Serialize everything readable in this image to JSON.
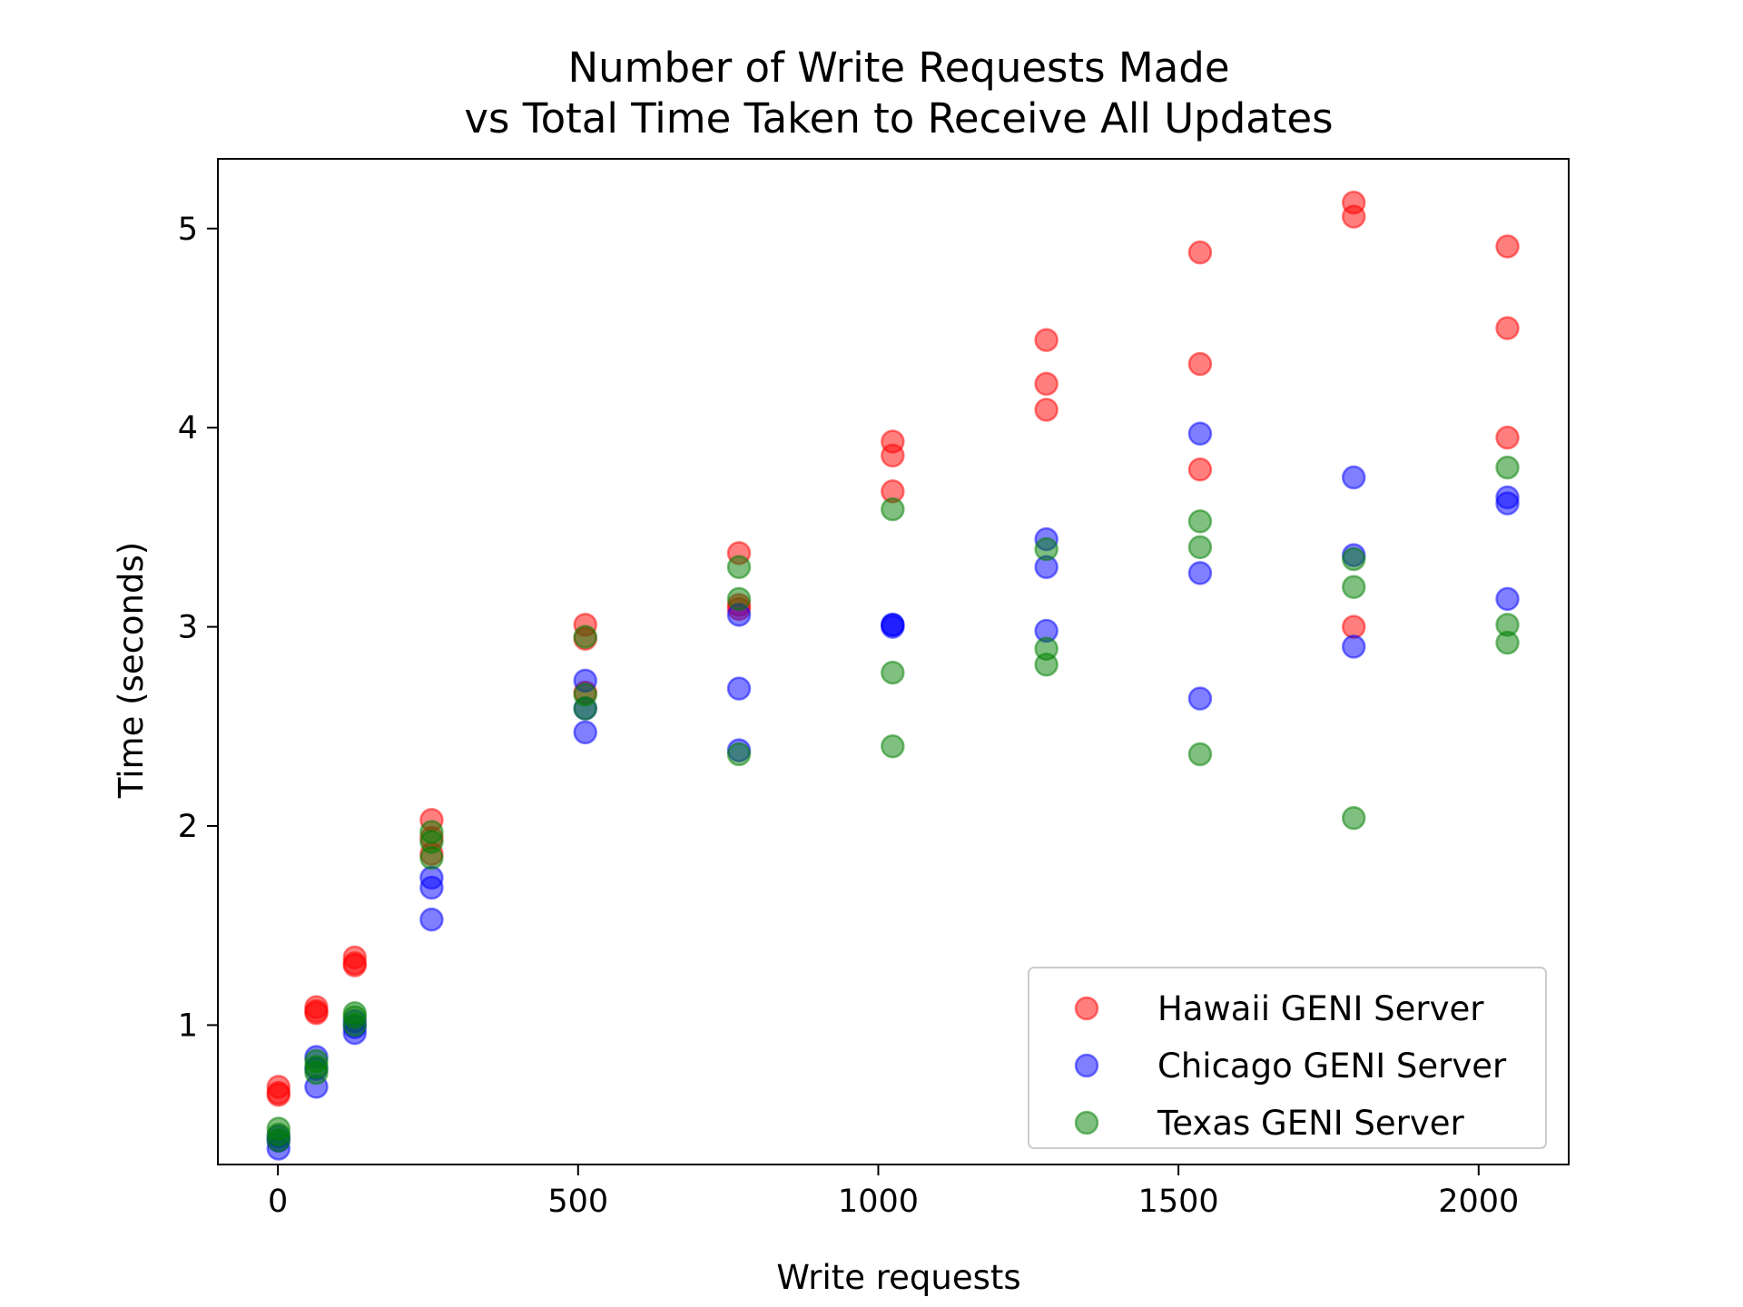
{
  "chart_data": {
    "type": "scatter",
    "title_line1": "Number of Write Requests Made",
    "title_line2": "vs Total Time Taken to Receive All Updates",
    "xlabel": "Write requests",
    "ylabel": "Time (seconds)",
    "xlim": [
      -100,
      2150
    ],
    "ylim": [
      0.3,
      5.35
    ],
    "xticks": [
      0,
      500,
      1000,
      1500,
      2000
    ],
    "yticks": [
      1,
      2,
      3,
      4,
      5
    ],
    "grid": false,
    "legend_position": "lower-right",
    "series": [
      {
        "name": "Hawaii GENI Server",
        "color": "#ff0000",
        "points": [
          [
            1,
            0.69
          ],
          [
            1,
            0.66
          ],
          [
            1,
            0.65
          ],
          [
            64,
            1.09
          ],
          [
            64,
            1.07
          ],
          [
            64,
            1.06
          ],
          [
            128,
            1.34
          ],
          [
            128,
            1.31
          ],
          [
            128,
            1.3
          ],
          [
            256,
            2.03
          ],
          [
            256,
            1.94
          ],
          [
            256,
            1.86
          ],
          [
            512,
            3.01
          ],
          [
            512,
            2.94
          ],
          [
            512,
            2.67
          ],
          [
            768,
            3.37
          ],
          [
            768,
            3.11
          ],
          [
            768,
            3.09
          ],
          [
            1024,
            3.93
          ],
          [
            1024,
            3.86
          ],
          [
            1024,
            3.68
          ],
          [
            1280,
            4.44
          ],
          [
            1280,
            4.22
          ],
          [
            1280,
            4.09
          ],
          [
            1536,
            4.88
          ],
          [
            1536,
            4.32
          ],
          [
            1536,
            3.79
          ],
          [
            1792,
            5.13
          ],
          [
            1792,
            5.06
          ],
          [
            1792,
            3.0
          ],
          [
            2048,
            4.91
          ],
          [
            2048,
            4.5
          ],
          [
            2048,
            3.95
          ]
        ]
      },
      {
        "name": "Chicago GENI Server",
        "color": "#0000ff",
        "points": [
          [
            1,
            0.38
          ],
          [
            1,
            0.42
          ],
          [
            1,
            0.44
          ],
          [
            64,
            0.69
          ],
          [
            64,
            0.78
          ],
          [
            64,
            0.84
          ],
          [
            128,
            0.96
          ],
          [
            128,
            0.99
          ],
          [
            128,
            1.02
          ],
          [
            256,
            1.53
          ],
          [
            256,
            1.69
          ],
          [
            256,
            1.74
          ],
          [
            512,
            2.47
          ],
          [
            512,
            2.59
          ],
          [
            512,
            2.73
          ],
          [
            768,
            2.38
          ],
          [
            768,
            2.69
          ],
          [
            768,
            3.06
          ],
          [
            1024,
            3.0
          ],
          [
            1024,
            3.01
          ],
          [
            1024,
            3.01
          ],
          [
            1280,
            2.98
          ],
          [
            1280,
            3.3
          ],
          [
            1280,
            3.44
          ],
          [
            1536,
            2.64
          ],
          [
            1536,
            3.27
          ],
          [
            1536,
            3.97
          ],
          [
            1792,
            2.9
          ],
          [
            1792,
            3.36
          ],
          [
            1792,
            3.75
          ],
          [
            2048,
            3.14
          ],
          [
            2048,
            3.62
          ],
          [
            2048,
            3.65
          ]
        ]
      },
      {
        "name": "Texas GENI Server",
        "color": "#008000",
        "points": [
          [
            1,
            0.42
          ],
          [
            1,
            0.45
          ],
          [
            1,
            0.48
          ],
          [
            64,
            0.76
          ],
          [
            64,
            0.79
          ],
          [
            64,
            0.82
          ],
          [
            128,
            1.0
          ],
          [
            128,
            1.04
          ],
          [
            128,
            1.06
          ],
          [
            256,
            1.84
          ],
          [
            256,
            1.92
          ],
          [
            256,
            1.97
          ],
          [
            512,
            2.59
          ],
          [
            512,
            2.66
          ],
          [
            512,
            2.95
          ],
          [
            768,
            2.36
          ],
          [
            768,
            3.14
          ],
          [
            768,
            3.3
          ],
          [
            1024,
            2.4
          ],
          [
            1024,
            2.77
          ],
          [
            1024,
            3.59
          ],
          [
            1280,
            2.81
          ],
          [
            1280,
            2.89
          ],
          [
            1280,
            3.39
          ],
          [
            1536,
            2.36
          ],
          [
            1536,
            3.4
          ],
          [
            1536,
            3.53
          ],
          [
            1792,
            2.04
          ],
          [
            1792,
            3.2
          ],
          [
            1792,
            3.34
          ],
          [
            2048,
            2.92
          ],
          [
            2048,
            3.01
          ],
          [
            2048,
            3.8
          ]
        ]
      }
    ]
  }
}
